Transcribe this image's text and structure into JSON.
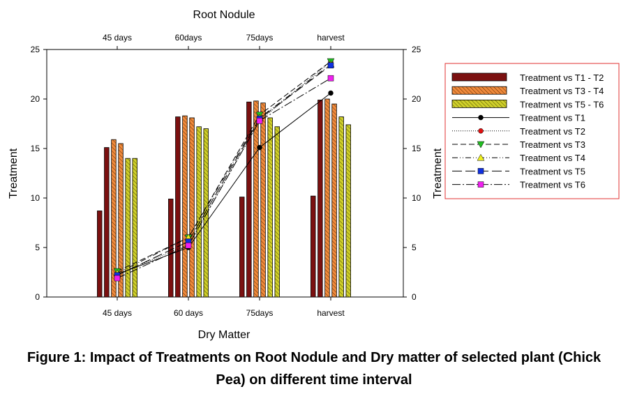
{
  "chart_data": {
    "type": "bar",
    "title": "Root Nodule",
    "xlabel": "Dry Matter",
    "ylabel": "Treatment",
    "ylabel_right": "Treatment",
    "categories": [
      "45 days",
      "60 days",
      "75days",
      "harvest"
    ],
    "top_categories": [
      "45 days",
      "60days",
      "75days",
      "harvest"
    ],
    "ylim": [
      0,
      25
    ],
    "yticks": [
      0,
      5,
      10,
      15,
      20,
      25
    ],
    "grid": false,
    "legend_position": "right",
    "bar_series": [
      {
        "name": "Treatment vs T1 - T2",
        "color": "#7b1010",
        "hatch": false,
        "values": [
          [
            8.7,
            15.1
          ],
          [
            9.9,
            18.2
          ],
          [
            10.1,
            19.7
          ],
          [
            10.2,
            19.9
          ]
        ]
      },
      {
        "name": "Treatment vs T3 - T4",
        "color": "#f08a3c",
        "hatch": true,
        "values": [
          [
            15.9,
            15.5
          ],
          [
            18.3,
            18.1
          ],
          [
            19.8,
            19.6
          ],
          [
            20.0,
            19.5
          ]
        ]
      },
      {
        "name": "Treatment vs T5 - T6",
        "color": "#cfcf2a",
        "hatch": true,
        "values": [
          [
            14.0,
            14.0
          ],
          [
            17.2,
            17.0
          ],
          [
            18.1,
            17.2
          ],
          [
            18.2,
            17.4
          ]
        ]
      }
    ],
    "line_series": [
      {
        "name": "Treatment vs T1",
        "marker": "circle",
        "color": "#000000",
        "dash": "",
        "values": [
          2.3,
          5.0,
          15.1,
          20.6
        ]
      },
      {
        "name": "Treatment vs T2",
        "marker": "circle",
        "color": "#e01010",
        "dash": "1,2",
        "values": [
          2.3,
          5.3,
          17.8,
          23.8
        ]
      },
      {
        "name": "Treatment vs T3",
        "marker": "triangle-down",
        "color": "#22c022",
        "dash": "8,4",
        "values": [
          2.6,
          6.0,
          18.4,
          23.8
        ]
      },
      {
        "name": "Treatment vs T4",
        "marker": "triangle-up",
        "color": "#f0f020",
        "dash": "8,3,1,3,1,3",
        "values": [
          2.4,
          6.0,
          18.1,
          23.5
        ]
      },
      {
        "name": "Treatment vs T5",
        "marker": "square",
        "color": "#1030e0",
        "dash": "14,5",
        "values": [
          2.2,
          5.6,
          18.0,
          23.4
        ]
      },
      {
        "name": "Treatment vs T6",
        "marker": "square",
        "color": "#f020f0",
        "dash": "12,3,2,3",
        "values": [
          1.9,
          5.2,
          17.8,
          22.1
        ]
      }
    ]
  },
  "caption": {
    "line1": "Figure 1: Impact of Treatments on Root Nodule and Dry matter of selected plant (Chick",
    "line2": "Pea) on different time interval"
  }
}
